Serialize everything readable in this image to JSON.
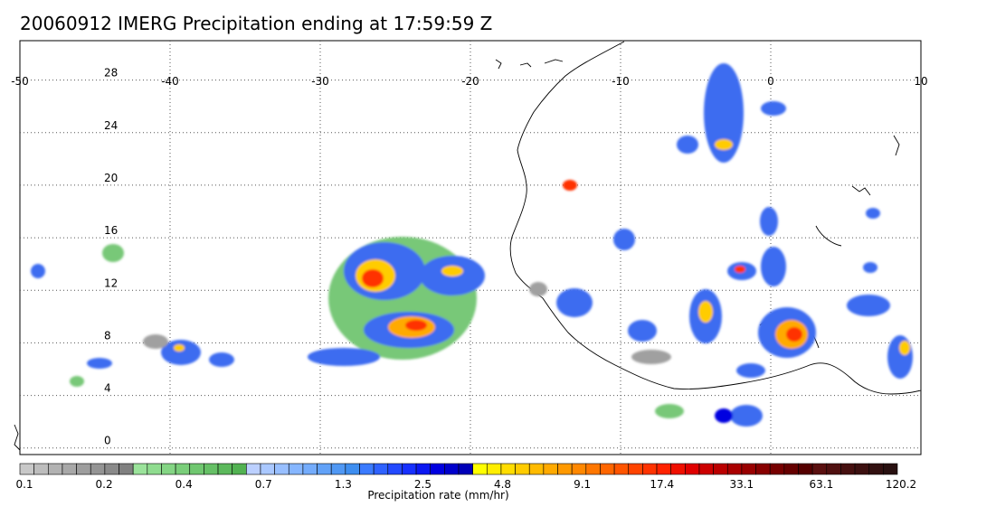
{
  "title": "20060912 IMERG Precipitation ending at 17:59:59 Z",
  "map": {
    "lon_range": [
      -50,
      10
    ],
    "lat_range": [
      -0.5,
      31
    ],
    "lon_ticks": [
      -50,
      -40,
      -30,
      -20,
      -10,
      0,
      10
    ],
    "lon_tick_labels": [
      "-50",
      "-40",
      "-30",
      "-20",
      "-10",
      "0",
      "10"
    ],
    "lat_ticks": [
      0,
      4,
      8,
      12,
      16,
      20,
      24,
      28
    ],
    "lat_tick_labels": [
      "0",
      "4",
      "8",
      "12",
      "16",
      "20",
      "24",
      "28"
    ],
    "grid": true,
    "grid_style": "dotted",
    "coastline_color": "#000000"
  },
  "colorbar": {
    "label": "Precipitation rate (mm/hr)",
    "tick_labels": [
      "0.1",
      "0.2",
      "0.4",
      "0.7",
      "1.3",
      "2.5",
      "4.8",
      "9.1",
      "17.4",
      "33.1",
      "63.1",
      "120.2"
    ],
    "colors": [
      "#c8c8c8",
      "#bdbdbd",
      "#b2b2b2",
      "#a8a8a8",
      "#9e9e9e",
      "#949494",
      "#8a8a8a",
      "#808080",
      "#9be39b",
      "#8fdc8f",
      "#84d584",
      "#7ace7a",
      "#70c770",
      "#66c066",
      "#5cb95c",
      "#52b252",
      "#bcd0ff",
      "#aac8ff",
      "#98bfff",
      "#86b6ff",
      "#74acfc",
      "#62a2f8",
      "#5098f4",
      "#3e8ef0",
      "#3b7bff",
      "#2f62ff",
      "#2349ff",
      "#1730ff",
      "#0b18f2",
      "#0000e0",
      "#0000cc",
      "#0000b8",
      "#ffff00",
      "#ffee00",
      "#ffdd00",
      "#ffcc00",
      "#ffbb00",
      "#ffaa00",
      "#ff9900",
      "#ff8800",
      "#ff7700",
      "#ff6600",
      "#ff5500",
      "#ff4400",
      "#ff3300",
      "#ff2200",
      "#f01000",
      "#e00000",
      "#cc0000",
      "#bb0000",
      "#aa0000",
      "#990000",
      "#880000",
      "#770000",
      "#660000",
      "#550000",
      "#5a1010",
      "#501010",
      "#461010",
      "#3c1010",
      "#321010",
      "#281010"
    ]
  },
  "legend_colors": {
    "light_rain": "#78c878",
    "moderate_rain": "#3c6cf0",
    "heavy_core": "#0000e0",
    "intense_core": "#ff3300"
  }
}
